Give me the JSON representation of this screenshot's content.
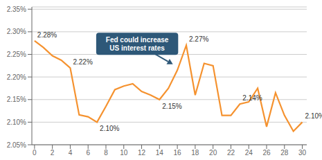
{
  "chart_data": {
    "type": "line",
    "x": [
      0,
      1,
      2,
      3,
      4,
      5,
      6,
      7,
      8,
      9,
      10,
      11,
      12,
      13,
      14,
      15,
      16,
      17,
      18,
      19,
      20,
      21,
      22,
      23,
      24,
      25,
      26,
      27,
      28,
      29,
      30
    ],
    "values": [
      2.28,
      2.265,
      2.247,
      2.237,
      2.22,
      2.116,
      2.112,
      2.1,
      2.135,
      2.172,
      2.18,
      2.185,
      2.168,
      2.16,
      2.15,
      2.175,
      2.215,
      2.27,
      2.16,
      2.23,
      2.225,
      2.115,
      2.115,
      2.14,
      2.145,
      2.175,
      2.09,
      2.165,
      2.115,
      2.08,
      2.1
    ],
    "color": "#f5922f",
    "xlim": [
      -0.3,
      30.5
    ],
    "ylim": [
      2.05,
      2.355
    ],
    "xticks": [
      0,
      2,
      4,
      6,
      8,
      10,
      12,
      14,
      16,
      18,
      20,
      22,
      24,
      26,
      28,
      30
    ],
    "yticks": [
      {
        "value": 2.05,
        "label": "2.05%"
      },
      {
        "value": 2.1,
        "label": "2.10%"
      },
      {
        "value": 2.15,
        "label": "2.15%"
      },
      {
        "value": 2.2,
        "label": "2.20%"
      },
      {
        "value": 2.25,
        "label": "2.25%"
      },
      {
        "value": 2.3,
        "label": "2.30%"
      },
      {
        "value": 2.35,
        "label": "2.35%"
      }
    ],
    "grid": true,
    "annotations": [
      {
        "x": 0,
        "y": 2.28,
        "text": "2.28%"
      },
      {
        "x": 4,
        "y": 2.22,
        "text": "2.22%"
      },
      {
        "x": 7,
        "y": 2.1,
        "text": "2.10%"
      },
      {
        "x": 14,
        "y": 2.15,
        "text": "2.15%"
      },
      {
        "x": 17,
        "y": 2.27,
        "text": "2.27%"
      },
      {
        "x": 23,
        "y": 2.14,
        "text": "2.14%"
      },
      {
        "x": 30,
        "y": 2.1,
        "text": "2.10%"
      },
      {
        "x": 11.5,
        "y": 2.298,
        "text": "Fed could increase\nUS interest rates",
        "arrow_x": 15.5,
        "arrow_y": 2.228,
        "color": "#2e5878"
      }
    ]
  }
}
